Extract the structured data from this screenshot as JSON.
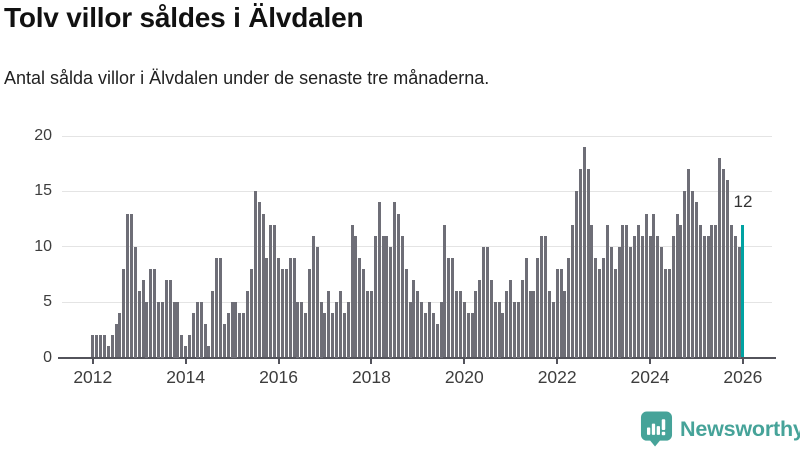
{
  "header": {
    "title": "Tolv villor såldes i Älvdalen",
    "subtitle": "Antal sålda villor i Älvdalen under de senaste tre månaderna."
  },
  "chart_data": {
    "type": "bar",
    "title": "Tolv villor såldes i Älvdalen",
    "subtitle": "Antal sålda villor i Älvdalen under de senaste tre månaderna.",
    "xlabel": "",
    "ylabel": "",
    "x_unit": "month",
    "x_start": "2012-01",
    "x_end": "2026-01",
    "x_tick_labels": [
      "2012",
      "2014",
      "2016",
      "2018",
      "2020",
      "2022",
      "2024",
      "2026"
    ],
    "y_ticks": [
      0,
      5,
      10,
      15,
      20
    ],
    "ylim": [
      0,
      20
    ],
    "grid": true,
    "legend": "none",
    "values": [
      2,
      2,
      2,
      2,
      1,
      2,
      3,
      4,
      8,
      13,
      13,
      10,
      6,
      7,
      5,
      8,
      8,
      5,
      5,
      7,
      7,
      5,
      5,
      2,
      1,
      2,
      4,
      5,
      5,
      3,
      1,
      6,
      9,
      9,
      3,
      4,
      5,
      5,
      4,
      4,
      6,
      8,
      15,
      14,
      13,
      9,
      12,
      12,
      9,
      8,
      8,
      9,
      9,
      5,
      5,
      4,
      8,
      11,
      10,
      5,
      4,
      6,
      4,
      5,
      6,
      4,
      5,
      12,
      11,
      9,
      8,
      6,
      6,
      11,
      14,
      11,
      11,
      10,
      14,
      13,
      11,
      8,
      5,
      7,
      6,
      5,
      4,
      5,
      4,
      3,
      5,
      12,
      9,
      9,
      6,
      6,
      5,
      4,
      4,
      6,
      7,
      10,
      10,
      7,
      5,
      5,
      4,
      6,
      7,
      5,
      5,
      7,
      9,
      6,
      6,
      9,
      11,
      11,
      6,
      5,
      8,
      8,
      6,
      9,
      12,
      15,
      17,
      19,
      17,
      12,
      9,
      8,
      9,
      12,
      10,
      8,
      10,
      12,
      12,
      10,
      11,
      12,
      11,
      13,
      11,
      13,
      11,
      10,
      8,
      8,
      11,
      13,
      12,
      15,
      17,
      15,
      14,
      12,
      11,
      11,
      12,
      12,
      18,
      17,
      16,
      12,
      11,
      10,
      12
    ],
    "highlight": {
      "index": 168,
      "value": 12,
      "label": "12"
    }
  },
  "branding": {
    "name": "Newsworthy",
    "icon": "newsworthy-speech-bubble-bar-chart-icon"
  },
  "colors": {
    "background": "#ffffff",
    "title": "#111111",
    "subtitle": "#222222",
    "axis_labels": "#3d3d3d",
    "gridline": "#e4e4e4",
    "axis_line": "#53535b",
    "bar": "#6e6e77",
    "highlight": "#00a2a2",
    "annotation": "#333333",
    "brand": "#46a399"
  }
}
